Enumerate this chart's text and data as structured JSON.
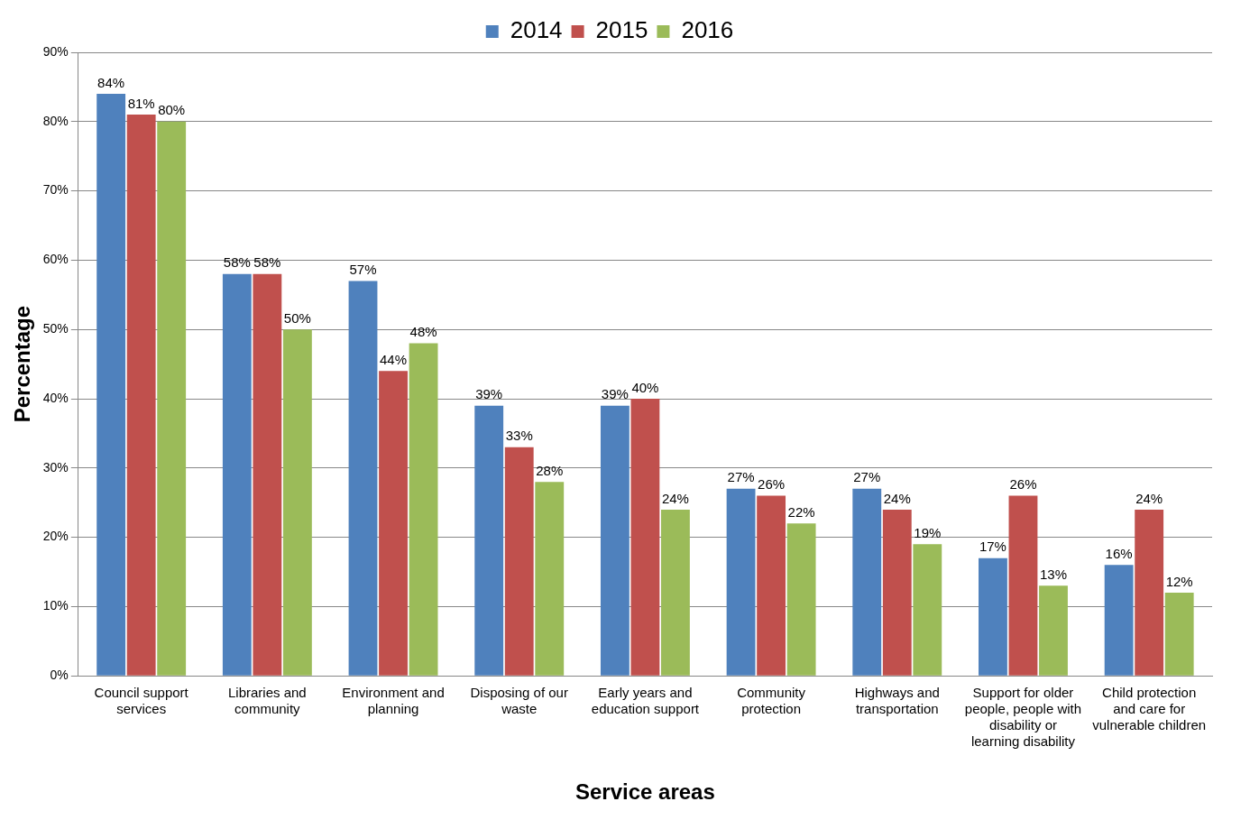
{
  "chart_data": {
    "type": "bar",
    "xlabel": "Service areas",
    "ylabel": "Percentage",
    "categories": [
      "Council support services",
      "Libraries and community",
      "Environment and planning",
      "Disposing of our waste",
      "Early years and education support",
      "Community protection",
      "Highways and transportation",
      "Support for older people, people with disability or learning disability",
      "Child protection and care for vulnerable children"
    ],
    "series": [
      {
        "name": "2014",
        "color": "#4f81bd",
        "values": [
          84,
          58,
          57,
          39,
          39,
          27,
          27,
          17,
          16
        ],
        "value_labels": [
          "84%",
          "58%",
          "57%",
          "39%",
          "39%",
          "27%",
          "27%",
          "17%",
          "16%"
        ]
      },
      {
        "name": "2015",
        "color": "#c0504d",
        "values": [
          81,
          58,
          44,
          33,
          40,
          26,
          24,
          26,
          24
        ],
        "value_labels": [
          "81%",
          "58%",
          "44%",
          "33%",
          "40%",
          "26%",
          "24%",
          "26%",
          "24%"
        ]
      },
      {
        "name": "2016",
        "color": "#9bbb59",
        "values": [
          80,
          50,
          48,
          28,
          24,
          22,
          19,
          13,
          12
        ],
        "value_labels": [
          "80%",
          "50%",
          "48%",
          "28%",
          "24%",
          "22%",
          "19%",
          "13%",
          "12%"
        ]
      }
    ],
    "ylim": [
      0,
      90
    ],
    "yticks": [
      {
        "value": 0,
        "label": "0%"
      },
      {
        "value": 10,
        "label": "10%"
      },
      {
        "value": 20,
        "label": "20%"
      },
      {
        "value": 30,
        "label": "30%"
      },
      {
        "value": 40,
        "label": "40%"
      },
      {
        "value": 50,
        "label": "50%"
      },
      {
        "value": 60,
        "label": "60%"
      },
      {
        "value": 70,
        "label": "70%"
      },
      {
        "value": 80,
        "label": "80%"
      },
      {
        "value": 90,
        "label": "90%"
      }
    ],
    "grid": "y",
    "legend": "top"
  }
}
